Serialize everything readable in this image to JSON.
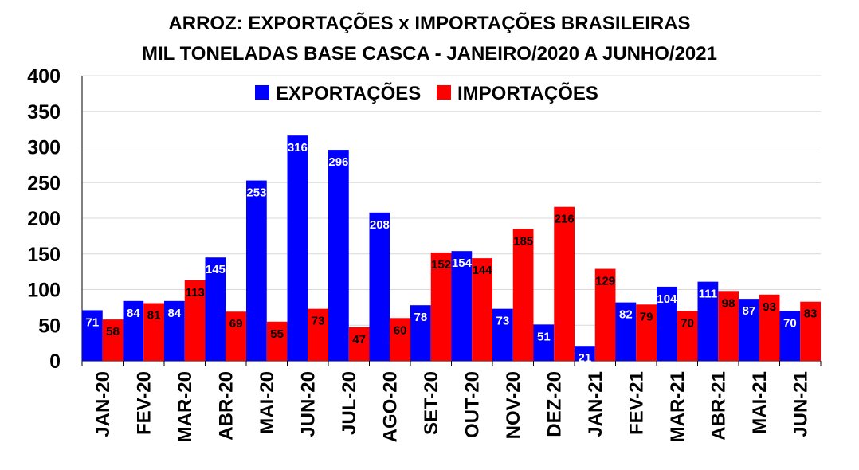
{
  "chart_data": {
    "type": "bar",
    "title": "ARROZ: EXPORTAÇÕES x IMPORTAÇÕES BRASILEIRAS",
    "subtitle": "MIL TONELADAS BASE CASCA - JANEIRO/2020 A JUNHO/2021",
    "categories": [
      "JAN-20",
      "FEV-20",
      "MAR-20",
      "ABR-20",
      "MAI-20",
      "JUN-20",
      "JUL-20",
      "AGO-20",
      "SET-20",
      "OUT-20",
      "NOV-20",
      "DEZ-20",
      "JAN-21",
      "FEV-21",
      "MAR-21",
      "ABR-21",
      "MAI-21",
      "JUN-21"
    ],
    "series": [
      {
        "name": "EXPORTAÇÕES",
        "color": "#0000ff",
        "values": [
          71,
          84,
          84,
          145,
          253,
          316,
          296,
          208,
          78,
          154,
          73,
          51,
          21,
          82,
          104,
          111,
          87,
          70
        ]
      },
      {
        "name": "IMPORTAÇÕES",
        "color": "#ff0000",
        "values": [
          58,
          81,
          113,
          69,
          55,
          73,
          47,
          60,
          152,
          144,
          185,
          216,
          129,
          79,
          70,
          98,
          93,
          83
        ]
      }
    ],
    "ylim": [
      0,
      400
    ],
    "yticks": [
      0,
      50,
      100,
      150,
      200,
      250,
      300,
      350,
      400
    ],
    "grid": true,
    "legend": "top-center",
    "xlabel": "",
    "ylabel": ""
  }
}
